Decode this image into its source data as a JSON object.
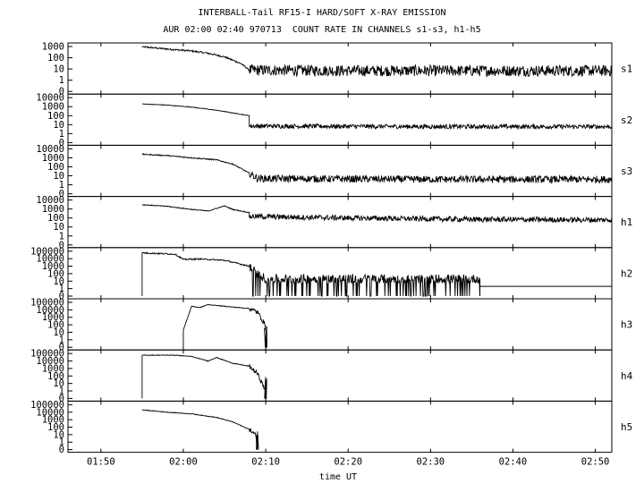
{
  "chart_data": {
    "type": "line",
    "title": "INTERBALL-Tail RF15-I HARD/SOFT X-RAY EMISSION",
    "subtitle": "AUR 02:00 02:40 970713  COUNT RATE IN CHANNELS s1-s3, h1-h5",
    "xlabel": "time UT",
    "x_range": [
      "01:46",
      "02:52"
    ],
    "x_ticks": [
      "01:50",
      "02:00",
      "02:10",
      "02:20",
      "02:30",
      "02:40",
      "02:50"
    ],
    "y_scale": "log",
    "panels": [
      {
        "name": "s1",
        "yticks": [
          "1000",
          "100",
          "10",
          "1",
          "0"
        ],
        "points": [
          [
            "01:55",
            950
          ],
          [
            "01:58",
            600
          ],
          [
            "02:01",
            400
          ],
          [
            "02:03",
            250
          ],
          [
            "02:05",
            120
          ],
          [
            "02:07",
            30
          ],
          [
            "02:08",
            8
          ],
          [
            "02:20",
            7
          ],
          [
            "02:35",
            7
          ],
          [
            "02:52",
            7
          ]
        ],
        "noise": 0.5
      },
      {
        "name": "s2",
        "yticks": [
          "10000",
          "1000",
          "100",
          "10",
          "1",
          "0"
        ],
        "points": [
          [
            "01:55",
            2000
          ],
          [
            "01:58",
            1500
          ],
          [
            "02:01",
            900
          ],
          [
            "02:04",
            400
          ],
          [
            "02:06",
            200
          ],
          [
            "02:08",
            100
          ],
          [
            "02:08",
            7
          ],
          [
            "02:30",
            6
          ],
          [
            "02:52",
            6
          ]
        ],
        "noise": 0.25
      },
      {
        "name": "s3",
        "yticks": [
          "10000",
          "1000",
          "100",
          "10",
          "1",
          "0"
        ],
        "points": [
          [
            "01:55",
            2500
          ],
          [
            "01:58",
            1800
          ],
          [
            "02:01",
            1000
          ],
          [
            "02:04",
            600
          ],
          [
            "02:06",
            200
          ],
          [
            "02:08",
            20
          ],
          [
            "02:09",
            5
          ],
          [
            "02:30",
            4
          ],
          [
            "02:52",
            4
          ]
        ],
        "noise": 0.4
      },
      {
        "name": "h1",
        "yticks": [
          "10000",
          "1000",
          "100",
          "10",
          "1",
          "0"
        ],
        "points": [
          [
            "01:55",
            3000
          ],
          [
            "01:58",
            2000
          ],
          [
            "02:01",
            900
          ],
          [
            "02:03",
            600
          ],
          [
            "02:05",
            2200
          ],
          [
            "02:06",
            900
          ],
          [
            "02:08",
            400
          ],
          [
            "02:08",
            150
          ],
          [
            "02:20",
            100
          ],
          [
            "02:35",
            70
          ],
          [
            "02:52",
            60
          ]
        ],
        "noise": 0.3
      },
      {
        "name": "h2",
        "yticks": [
          "100000",
          "10000",
          "1000",
          "100",
          "10",
          "1",
          "0"
        ],
        "points": [
          [
            "01:55",
            60000
          ],
          [
            "01:59",
            40000
          ],
          [
            "02:00",
            8000
          ],
          [
            "02:02",
            9000
          ],
          [
            "02:05",
            6000
          ],
          [
            "02:08",
            1000
          ],
          [
            "02:09",
            100
          ],
          [
            "02:10",
            20
          ],
          [
            "02:36",
            20
          ]
        ],
        "baseline_value": 2,
        "noise": 0.6,
        "dropouts": true,
        "start_from_zero": "01:55",
        "end_at_zero": "02:36"
      },
      {
        "name": "h3",
        "yticks": [
          "100000",
          "10000",
          "1000",
          "100",
          "10",
          "1",
          "0"
        ],
        "points": [
          [
            "02:00",
            0
          ],
          [
            "02:00",
            20
          ],
          [
            "02:01",
            30000
          ],
          [
            "02:02",
            20000
          ],
          [
            "02:03",
            50000
          ],
          [
            "02:05",
            30000
          ],
          [
            "02:08",
            15000
          ],
          [
            "02:09",
            5000
          ],
          [
            "02:10",
            80
          ]
        ],
        "noise": 0.3,
        "tail_to_zero": "02:10"
      },
      {
        "name": "h4",
        "yticks": [
          "100000",
          "10000",
          "1000",
          "100",
          "10",
          "1",
          "0"
        ],
        "points": [
          [
            "01:55",
            0
          ],
          [
            "01:55",
            60000
          ],
          [
            "01:59",
            60000
          ],
          [
            "02:01",
            40000
          ],
          [
            "02:03",
            10000
          ],
          [
            "02:04",
            30000
          ],
          [
            "02:06",
            5000
          ],
          [
            "02:08",
            2000
          ],
          [
            "02:09",
            200
          ],
          [
            "02:10",
            1
          ]
        ],
        "noise": 0.3,
        "tail_to_zero": "02:10"
      },
      {
        "name": "h5",
        "yticks": [
          "100000",
          "10000",
          "1000",
          "100",
          "10",
          "1",
          "0"
        ],
        "points": [
          [
            "01:55",
            20000
          ],
          [
            "01:58",
            10000
          ],
          [
            "02:01",
            6000
          ],
          [
            "02:04",
            2000
          ],
          [
            "02:06",
            500
          ],
          [
            "02:08",
            50
          ],
          [
            "02:09",
            5
          ]
        ],
        "noise": 0.3,
        "tail_to_zero": "02:09"
      }
    ]
  }
}
